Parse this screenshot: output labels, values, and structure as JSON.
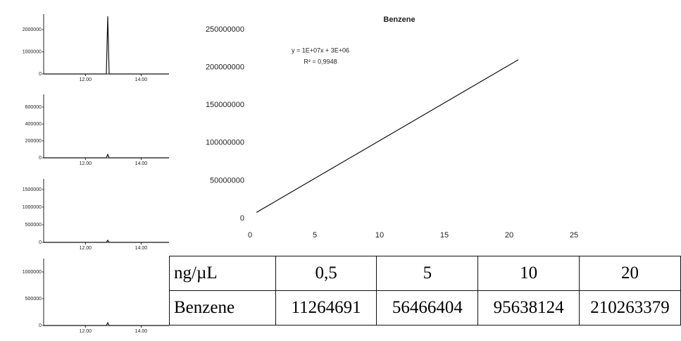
{
  "chart_data": [
    {
      "type": "line",
      "title": "Benzene",
      "annotations": [
        "y = 1E+07x + 3E+06",
        "R² = 0,9948"
      ],
      "series": [
        {
          "name": null,
          "color": "#111111",
          "x": [
            0.5,
            20.7
          ],
          "values": [
            8000000,
            210000000
          ]
        }
      ],
      "xlim": [
        0,
        25
      ],
      "xticks": [
        0,
        5,
        10,
        15,
        20,
        25
      ],
      "ylim": [
        0,
        250000000
      ],
      "yticks": [
        0,
        50000000,
        100000000,
        150000000,
        200000000,
        250000000
      ],
      "grid": false
    },
    {
      "type": "line",
      "series": [
        {
          "name": null,
          "color": "#111111",
          "x": [
            10.5,
            12.75,
            12.8,
            12.85,
            15.0
          ],
          "values": [
            0,
            0,
            2600000,
            0,
            0
          ]
        }
      ],
      "xlim": [
        10.5,
        15.0
      ],
      "xticks": [
        {
          "value": 12,
          "label": "12.00"
        },
        {
          "value": 14,
          "label": "14.00"
        }
      ],
      "ylim": [
        0,
        2700000
      ],
      "yticks": [
        0,
        1000000,
        2000000
      ]
    },
    {
      "type": "line",
      "series": [
        {
          "name": null,
          "color": "#111111",
          "x": [
            10.5,
            12.75,
            12.8,
            12.85,
            15.0
          ],
          "values": [
            0,
            0,
            40000,
            0,
            0
          ]
        }
      ],
      "xlim": [
        10.5,
        15.0
      ],
      "xticks": [
        {
          "value": 12,
          "label": "12.00"
        },
        {
          "value": 14,
          "label": "14.00"
        }
      ],
      "ylim": [
        0,
        750000
      ],
      "yticks": [
        0,
        200000,
        400000,
        600000
      ]
    },
    {
      "type": "line",
      "series": [
        {
          "name": null,
          "color": "#111111",
          "x": [
            10.5,
            12.75,
            12.8,
            12.85,
            15.0
          ],
          "values": [
            0,
            0,
            60000,
            0,
            0
          ]
        }
      ],
      "xlim": [
        10.5,
        15.0
      ],
      "xticks": [
        {
          "value": 12,
          "label": "12.00"
        },
        {
          "value": 14,
          "label": "14.00"
        }
      ],
      "ylim": [
        0,
        1800000
      ],
      "yticks": [
        0,
        500000,
        1000000,
        1500000
      ]
    },
    {
      "type": "line",
      "series": [
        {
          "name": null,
          "color": "#111111",
          "x": [
            10.5,
            12.75,
            12.8,
            12.85,
            15.0
          ],
          "values": [
            0,
            0,
            50000,
            0,
            0
          ]
        }
      ],
      "xlim": [
        10.5,
        15.0
      ],
      "xticks": [
        {
          "value": 12,
          "label": "12.00"
        },
        {
          "value": 14,
          "label": "14.00"
        }
      ],
      "ylim": [
        0,
        1250000
      ],
      "yticks": [
        0,
        500000,
        1000000
      ]
    }
  ],
  "table": {
    "rows": [
      [
        "ng/µL",
        "0,5",
        "5",
        "10",
        "20"
      ],
      [
        "Benzene",
        "11264691",
        "56466404",
        "95638124",
        "210263379"
      ]
    ]
  }
}
